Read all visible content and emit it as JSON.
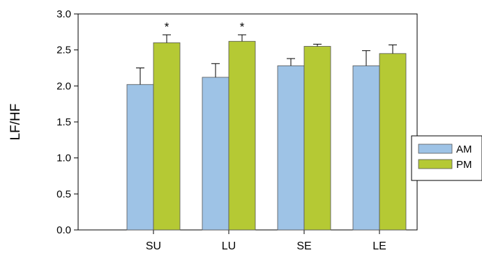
{
  "chart_data": {
    "type": "bar",
    "title": "",
    "xlabel": "",
    "ylabel": "LF/HF",
    "ylim": [
      0,
      3.0
    ],
    "yticks": [
      0.0,
      0.5,
      1.0,
      1.5,
      2.0,
      2.5,
      3.0
    ],
    "ytick_labels": [
      "0.0",
      "0.5",
      "1.0",
      "1.5",
      "2.0",
      "2.5",
      "3.0"
    ],
    "categories": [
      "SU",
      "LU",
      "SE",
      "LE"
    ],
    "series": [
      {
        "name": "AM",
        "color": "#9ec3e6",
        "values": [
          2.02,
          2.12,
          2.28,
          2.28
        ],
        "errors": [
          0.23,
          0.19,
          0.1,
          0.21
        ]
      },
      {
        "name": "PM",
        "color": "#b5c934",
        "values": [
          2.6,
          2.62,
          2.55,
          2.45
        ],
        "errors": [
          0.11,
          0.09,
          0.03,
          0.12
        ]
      }
    ],
    "annotations": [
      {
        "category": "SU",
        "series": "PM",
        "text": "*"
      },
      {
        "category": "LU",
        "series": "PM",
        "text": "*"
      }
    ],
    "legend": {
      "placement": "right"
    },
    "grid": false
  }
}
